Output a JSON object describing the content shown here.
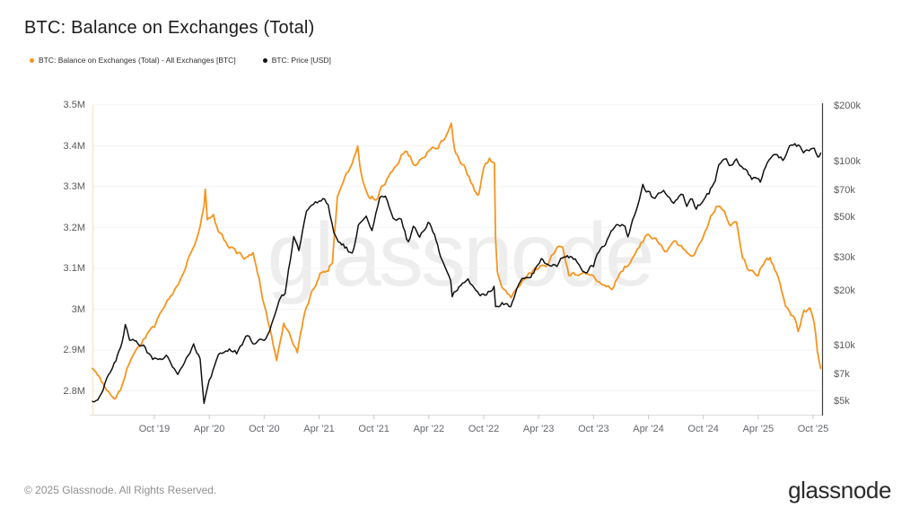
{
  "page": {
    "title": "BTC: Balance on Exchanges (Total)"
  },
  "legend": [
    {
      "label": "BTC: Balance on Exchanges (Total) - All Exchanges [BTC]",
      "color": "#f7941d"
    },
    {
      "label": "BTC: Price [USD]",
      "color": "#111111"
    }
  ],
  "watermark": "glassnode",
  "footer": {
    "copyright": "© 2025 Glassnode. All Rights Reserved.",
    "logo": "glassnode"
  },
  "chart_data": {
    "type": "line",
    "title": "BTC: Balance on Exchanges (Total)",
    "grid": "horizontal",
    "legend_position": "top-left",
    "left_axis": {
      "unit": "BTC",
      "scale": "linear",
      "range": [
        2.74,
        3.5
      ],
      "ticks": [
        {
          "label": "3.5M",
          "value": 3.5
        },
        {
          "label": "3.4M",
          "value": 3.4
        },
        {
          "label": "3.3M",
          "value": 3.3
        },
        {
          "label": "3.2M",
          "value": 3.2
        },
        {
          "label": "3.1M",
          "value": 3.1
        },
        {
          "label": "3M",
          "value": 3.0
        },
        {
          "label": "2.9M",
          "value": 2.9
        },
        {
          "label": "2.8M",
          "value": 2.8
        }
      ]
    },
    "right_axis": {
      "unit": "USD",
      "scale": "log",
      "range": [
        4200,
        200000
      ],
      "ticks": [
        {
          "label": "$200k",
          "value": 200000
        },
        {
          "label": "$100k",
          "value": 100000
        },
        {
          "label": "$70k",
          "value": 70000
        },
        {
          "label": "$50k",
          "value": 50000
        },
        {
          "label": "$30k",
          "value": 30000
        },
        {
          "label": "$20k",
          "value": 20000
        },
        {
          "label": "$10k",
          "value": 10000
        },
        {
          "label": "$7k",
          "value": 7000
        },
        {
          "label": "$5k",
          "value": 5000
        }
      ]
    },
    "x_axis": {
      "range": [
        "2019-03",
        "2025-11"
      ],
      "ticks": [
        {
          "label": "Oct '19",
          "date": "2019-10"
        },
        {
          "label": "Apr '20",
          "date": "2020-04"
        },
        {
          "label": "Oct '20",
          "date": "2020-10"
        },
        {
          "label": "Apr '21",
          "date": "2021-04"
        },
        {
          "label": "Oct '21",
          "date": "2021-10"
        },
        {
          "label": "Apr '22",
          "date": "2022-04"
        },
        {
          "label": "Oct '22",
          "date": "2022-10"
        },
        {
          "label": "Apr '23",
          "date": "2023-04"
        },
        {
          "label": "Oct '23",
          "date": "2023-10"
        },
        {
          "label": "Apr '24",
          "date": "2024-04"
        },
        {
          "label": "Oct '24",
          "date": "2024-10"
        },
        {
          "label": "Apr '25",
          "date": "2025-04"
        },
        {
          "label": "Oct '25",
          "date": "2025-10"
        }
      ]
    },
    "series": [
      {
        "name": "BTC: Balance on Exchanges (Total) - All Exchanges [BTC]",
        "axis": "left",
        "color": "#f7941d",
        "unit": "M BTC",
        "points": [
          [
            "2019-03-08",
            2.855
          ],
          [
            "2019-04-01",
            2.83
          ],
          [
            "2019-05-01",
            2.8
          ],
          [
            "2019-05-20",
            2.775
          ],
          [
            "2019-06-10",
            2.8
          ],
          [
            "2019-07-01",
            2.85
          ],
          [
            "2019-08-01",
            2.895
          ],
          [
            "2019-09-01",
            2.93
          ],
          [
            "2019-10-01",
            2.955
          ],
          [
            "2019-11-01",
            3.0
          ],
          [
            "2019-12-01",
            3.04
          ],
          [
            "2020-01-01",
            3.075
          ],
          [
            "2020-02-01",
            3.14
          ],
          [
            "2020-03-01",
            3.2
          ],
          [
            "2020-03-14",
            3.245
          ],
          [
            "2020-03-18",
            3.29
          ],
          [
            "2020-03-25",
            3.22
          ],
          [
            "2020-04-15",
            3.225
          ],
          [
            "2020-05-01",
            3.19
          ],
          [
            "2020-06-01",
            3.16
          ],
          [
            "2020-07-01",
            3.135
          ],
          [
            "2020-08-01",
            3.125
          ],
          [
            "2020-08-25",
            3.135
          ],
          [
            "2020-09-15",
            3.07
          ],
          [
            "2020-10-01",
            3.01
          ],
          [
            "2020-10-20",
            2.95
          ],
          [
            "2020-11-12",
            2.88
          ],
          [
            "2020-12-05",
            2.965
          ],
          [
            "2021-01-05",
            2.92
          ],
          [
            "2021-01-20",
            2.895
          ],
          [
            "2021-02-10",
            2.975
          ],
          [
            "2021-03-01",
            3.03
          ],
          [
            "2021-03-20",
            3.06
          ],
          [
            "2021-04-10",
            3.09
          ],
          [
            "2021-05-01",
            3.1
          ],
          [
            "2021-05-15",
            3.12
          ],
          [
            "2021-06-01",
            3.28
          ],
          [
            "2021-06-15",
            3.305
          ],
          [
            "2021-07-01",
            3.33
          ],
          [
            "2021-07-20",
            3.35
          ],
          [
            "2021-08-08",
            3.4
          ],
          [
            "2021-08-15",
            3.345
          ],
          [
            "2021-09-01",
            3.3
          ],
          [
            "2021-09-20",
            3.27
          ],
          [
            "2021-10-10",
            3.275
          ],
          [
            "2021-11-01",
            3.305
          ],
          [
            "2021-12-01",
            3.335
          ],
          [
            "2022-01-01",
            3.375
          ],
          [
            "2022-01-20",
            3.39
          ],
          [
            "2022-02-10",
            3.355
          ],
          [
            "2022-03-01",
            3.365
          ],
          [
            "2022-04-01",
            3.385
          ],
          [
            "2022-05-01",
            3.4
          ],
          [
            "2022-06-01",
            3.425
          ],
          [
            "2022-06-15",
            3.455
          ],
          [
            "2022-06-25",
            3.39
          ],
          [
            "2022-07-10",
            3.37
          ],
          [
            "2022-08-01",
            3.345
          ],
          [
            "2022-09-01",
            3.29
          ],
          [
            "2022-09-15",
            3.28
          ],
          [
            "2022-10-01",
            3.345
          ],
          [
            "2022-10-20",
            3.365
          ],
          [
            "2022-11-06",
            3.36
          ],
          [
            "2022-11-10",
            3.17
          ],
          [
            "2022-11-16",
            3.095
          ],
          [
            "2022-12-01",
            3.06
          ],
          [
            "2023-01-01",
            3.03
          ],
          [
            "2023-02-01",
            3.06
          ],
          [
            "2023-03-01",
            3.085
          ],
          [
            "2023-04-01",
            3.1
          ],
          [
            "2023-05-01",
            3.11
          ],
          [
            "2023-06-01",
            3.155
          ],
          [
            "2023-06-20",
            3.155
          ],
          [
            "2023-07-10",
            3.09
          ],
          [
            "2023-08-01",
            3.085
          ],
          [
            "2023-09-01",
            3.09
          ],
          [
            "2023-10-01",
            3.075
          ],
          [
            "2023-11-01",
            3.055
          ],
          [
            "2023-12-01",
            3.05
          ],
          [
            "2024-01-01",
            3.095
          ],
          [
            "2024-02-01",
            3.115
          ],
          [
            "2024-03-01",
            3.155
          ],
          [
            "2024-04-01",
            3.185
          ],
          [
            "2024-05-01",
            3.17
          ],
          [
            "2024-06-01",
            3.14
          ],
          [
            "2024-07-01",
            3.165
          ],
          [
            "2024-08-01",
            3.15
          ],
          [
            "2024-09-01",
            3.13
          ],
          [
            "2024-10-01",
            3.175
          ],
          [
            "2024-11-01",
            3.235
          ],
          [
            "2024-11-20",
            3.255
          ],
          [
            "2024-12-10",
            3.235
          ],
          [
            "2025-01-01",
            3.205
          ],
          [
            "2025-01-20",
            3.21
          ],
          [
            "2025-02-10",
            3.13
          ],
          [
            "2025-03-01",
            3.095
          ],
          [
            "2025-04-01",
            3.085
          ],
          [
            "2025-04-20",
            3.115
          ],
          [
            "2025-05-10",
            3.125
          ],
          [
            "2025-06-01",
            3.085
          ],
          [
            "2025-07-01",
            3.01
          ],
          [
            "2025-08-01",
            2.975
          ],
          [
            "2025-08-12",
            2.945
          ],
          [
            "2025-09-01",
            2.995
          ],
          [
            "2025-09-20",
            3.0
          ],
          [
            "2025-10-05",
            2.965
          ],
          [
            "2025-10-15",
            2.9
          ],
          [
            "2025-10-26",
            2.855
          ]
        ]
      },
      {
        "name": "BTC: Price [USD]",
        "axis": "right",
        "color": "#111111",
        "unit": "USD",
        "points": [
          [
            "2019-03-08",
            5000
          ],
          [
            "2019-04-01",
            5200
          ],
          [
            "2019-05-01",
            7000
          ],
          [
            "2019-05-20",
            8000
          ],
          [
            "2019-06-10",
            9500
          ],
          [
            "2019-06-26",
            12900
          ],
          [
            "2019-07-10",
            11000
          ],
          [
            "2019-08-01",
            10500
          ],
          [
            "2019-08-20",
            10200
          ],
          [
            "2019-09-01",
            9800
          ],
          [
            "2019-09-26",
            8300
          ],
          [
            "2019-10-25",
            8600
          ],
          [
            "2019-11-10",
            8800
          ],
          [
            "2019-12-01",
            7400
          ],
          [
            "2019-12-18",
            7000
          ],
          [
            "2020-01-10",
            8100
          ],
          [
            "2020-02-10",
            10000
          ],
          [
            "2020-03-01",
            8700
          ],
          [
            "2020-03-14",
            4950
          ],
          [
            "2020-04-01",
            6500
          ],
          [
            "2020-05-01",
            8800
          ],
          [
            "2020-06-01",
            9600
          ],
          [
            "2020-07-01",
            9200
          ],
          [
            "2020-08-01",
            11300
          ],
          [
            "2020-09-05",
            10300
          ],
          [
            "2020-10-01",
            10700
          ],
          [
            "2020-11-01",
            13500
          ],
          [
            "2020-11-20",
            18000
          ],
          [
            "2020-12-10",
            19000
          ],
          [
            "2021-01-08",
            38000
          ],
          [
            "2021-01-25",
            33000
          ],
          [
            "2021-02-20",
            52000
          ],
          [
            "2021-03-13",
            59000
          ],
          [
            "2021-04-14",
            63000
          ],
          [
            "2021-05-01",
            57000
          ],
          [
            "2021-05-20",
            40000
          ],
          [
            "2021-06-10",
            36000
          ],
          [
            "2021-07-01",
            34000
          ],
          [
            "2021-07-20",
            31000
          ],
          [
            "2021-08-10",
            45000
          ],
          [
            "2021-09-06",
            51000
          ],
          [
            "2021-09-25",
            43000
          ],
          [
            "2021-10-20",
            64000
          ],
          [
            "2021-11-09",
            66500
          ],
          [
            "2021-12-04",
            49000
          ],
          [
            "2022-01-01",
            47000
          ],
          [
            "2022-01-24",
            36000
          ],
          [
            "2022-02-10",
            43000
          ],
          [
            "2022-03-01",
            40000
          ],
          [
            "2022-03-29",
            47000
          ],
          [
            "2022-04-20",
            41000
          ],
          [
            "2022-05-10",
            31000
          ],
          [
            "2022-06-13",
            23000
          ],
          [
            "2022-06-18",
            19000
          ],
          [
            "2022-07-10",
            21000
          ],
          [
            "2022-08-10",
            23500
          ],
          [
            "2022-09-06",
            19500
          ],
          [
            "2022-09-20",
            19000
          ],
          [
            "2022-10-10",
            19200
          ],
          [
            "2022-11-05",
            21000
          ],
          [
            "2022-11-10",
            16500
          ],
          [
            "2022-12-01",
            17000
          ],
          [
            "2022-12-30",
            16500
          ],
          [
            "2023-01-20",
            21000
          ],
          [
            "2023-02-01",
            23000
          ],
          [
            "2023-03-01",
            23500
          ],
          [
            "2023-03-15",
            25000
          ],
          [
            "2023-04-10",
            29500
          ],
          [
            "2023-05-01",
            28000
          ],
          [
            "2023-06-01",
            26500
          ],
          [
            "2023-06-20",
            30000
          ],
          [
            "2023-07-10",
            30500
          ],
          [
            "2023-08-01",
            29000
          ],
          [
            "2023-08-20",
            26000
          ],
          [
            "2023-09-10",
            25800
          ],
          [
            "2023-10-01",
            27500
          ],
          [
            "2023-10-25",
            34000
          ],
          [
            "2023-11-10",
            36500
          ],
          [
            "2023-12-05",
            43000
          ],
          [
            "2024-01-10",
            46000
          ],
          [
            "2024-01-24",
            40000
          ],
          [
            "2024-02-15",
            52000
          ],
          [
            "2024-03-13",
            73000
          ],
          [
            "2024-04-17",
            63000
          ],
          [
            "2024-05-21",
            70000
          ],
          [
            "2024-06-24",
            60500
          ],
          [
            "2024-07-25",
            66000
          ],
          [
            "2024-08-07",
            56500
          ],
          [
            "2024-08-25",
            63000
          ],
          [
            "2024-09-08",
            55500
          ],
          [
            "2024-10-01",
            62000
          ],
          [
            "2024-10-20",
            67000
          ],
          [
            "2024-11-10",
            80000
          ],
          [
            "2024-11-22",
            98000
          ],
          [
            "2024-12-17",
            104000
          ],
          [
            "2025-01-01",
            95000
          ],
          [
            "2025-01-20",
            104000
          ],
          [
            "2025-02-25",
            87000
          ],
          [
            "2025-03-10",
            81000
          ],
          [
            "2025-04-08",
            77000
          ],
          [
            "2025-04-25",
            94000
          ],
          [
            "2025-05-21",
            108000
          ],
          [
            "2025-06-22",
            101000
          ],
          [
            "2025-07-14",
            119000
          ],
          [
            "2025-08-13",
            122000
          ],
          [
            "2025-08-30",
            108000
          ],
          [
            "2025-09-18",
            116000
          ],
          [
            "2025-10-05",
            122000
          ],
          [
            "2025-10-17",
            106000
          ],
          [
            "2025-10-26",
            111000
          ]
        ]
      }
    ]
  }
}
